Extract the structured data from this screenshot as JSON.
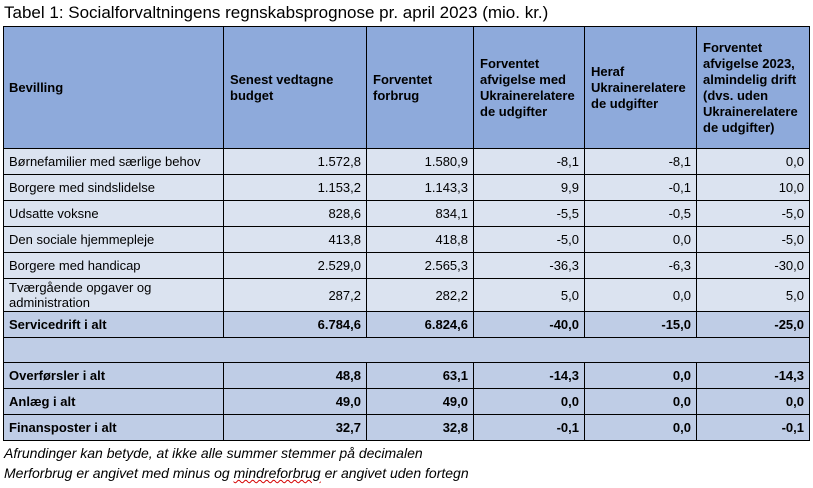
{
  "caption": "Tabel 1: Socialforvaltningens regnskabsprognose pr. april 2023 (mio. kr.)",
  "headers": [
    "Bevilling",
    "Senest vedtagne budget",
    "Forventet forbrug",
    "Forventet afvigelse med Ukrainerelatere de udgifter",
    "Heraf Ukrainerelatere de udgifter",
    "Forventet afvigelse 2023, almindelig drift (dvs. uden Ukrainerelatere de udgifter)"
  ],
  "rows": [
    [
      "Børnefamilier med særlige behov",
      "1.572,8",
      "1.580,9",
      "-8,1",
      "-8,1",
      "0,0"
    ],
    [
      "Borgere med sindslidelse",
      "1.153,2",
      "1.143,3",
      "9,9",
      "-0,1",
      "10,0"
    ],
    [
      "Udsatte voksne",
      "828,6",
      "834,1",
      "-5,5",
      "-0,5",
      "-5,0"
    ],
    [
      "Den sociale hjemmepleje",
      "413,8",
      "418,8",
      "-5,0",
      "0,0",
      "-5,0"
    ],
    [
      "Borgere med handicap",
      "2.529,0",
      "2.565,3",
      "-36,3",
      "-6,3",
      "-30,0"
    ],
    [
      "Tværgående opgaver og administration",
      "287,2",
      "282,2",
      "5,0",
      "0,0",
      "5,0"
    ]
  ],
  "subtotal": [
    "Servicedrift i alt",
    "6.784,6",
    "6.824,6",
    "-40,0",
    "-15,0",
    "-25,0"
  ],
  "bottom_rows": [
    [
      "Overførsler i alt",
      "48,8",
      "63,1",
      "-14,3",
      "0,0",
      "-14,3"
    ],
    [
      "Anlæg i alt",
      "49,0",
      "49,0",
      "0,0",
      "0,0",
      "0,0"
    ],
    [
      "Finansposter i alt",
      "32,7",
      "32,8",
      "-0,1",
      "0,0",
      "-0,1"
    ]
  ],
  "footnotes": {
    "line1": "Afrundinger kan betyde, at ikke alle summer stemmer på decimalen",
    "line2_before": "Merforbrug er angivet med minus og ",
    "line2_marked": "mindreforbrug",
    "line2_after": " er angivet uden fortegn"
  }
}
